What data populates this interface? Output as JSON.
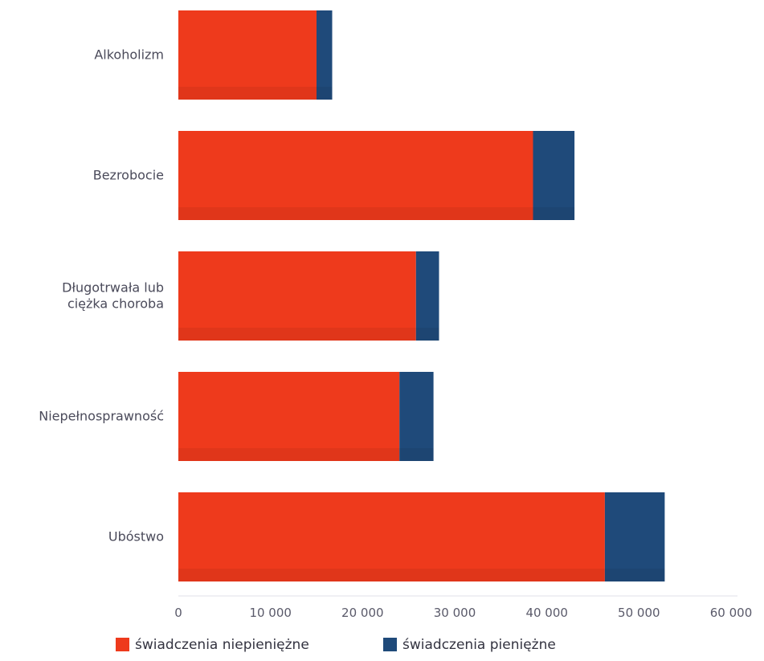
{
  "chart_data": {
    "type": "bar",
    "orientation": "horizontal",
    "stacked": true,
    "categories": [
      [
        "Alkoholizm"
      ],
      [
        "Bezrobocie"
      ],
      [
        "Długotrwała lub",
        "ciężka choroba"
      ],
      [
        "Niepełnosprawność"
      ],
      [
        "Ubóstwo"
      ]
    ],
    "series": [
      {
        "name": "świadczenia niepieniężne",
        "color": "#ee3a1c",
        "values": [
          15000,
          38500,
          25800,
          24000,
          46300
        ]
      },
      {
        "name": "świadczenia pieniężne",
        "color": "#1f4a7a",
        "values": [
          1700,
          4500,
          2500,
          3700,
          6500
        ]
      }
    ],
    "xlim": [
      0,
      60000
    ],
    "xticks": [
      0,
      10000,
      20000,
      30000,
      40000,
      50000,
      60000
    ],
    "xtick_labels": [
      "0",
      "10 000",
      "20 000",
      "30 000",
      "40 000",
      "50 000",
      "60 000"
    ],
    "legend": {
      "placement": "bottom",
      "items": [
        {
          "label": "świadczenia niepieniężne",
          "color": "#ee3a1c"
        },
        {
          "label": "świadczenia pieniężne",
          "color": "#1f4a7a"
        }
      ]
    },
    "grid": false
  }
}
